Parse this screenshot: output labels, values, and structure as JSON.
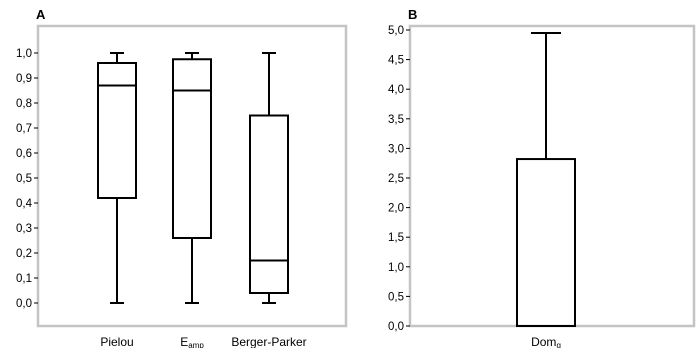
{
  "chart_data": [
    {
      "panel": "A",
      "type": "box",
      "ylim": [
        0,
        1.0
      ],
      "yticks": [
        "0,0",
        "0,1",
        "0,2",
        "0,3",
        "0,4",
        "0,5",
        "0,6",
        "0,7",
        "0,8",
        "0,9",
        "1,0"
      ],
      "grid": false,
      "categories": [
        {
          "label": "Pielou",
          "sub": ""
        },
        {
          "label": "E",
          "sub": "amp"
        },
        {
          "label": "Berger-Parker",
          "sub": ""
        }
      ],
      "boxes": [
        {
          "min": 0.0,
          "q1": 0.42,
          "median": 0.87,
          "q3": 0.96,
          "max": 1.0
        },
        {
          "min": 0.0,
          "q1": 0.26,
          "median": 0.85,
          "q3": 0.975,
          "max": 1.0
        },
        {
          "min": 0.0,
          "q1": 0.04,
          "median": 0.17,
          "q3": 0.75,
          "max": 1.0
        }
      ]
    },
    {
      "panel": "B",
      "type": "bar",
      "ylim": [
        0,
        5.0
      ],
      "yticks": [
        "0,0",
        "0,5",
        "1,0",
        "1,5",
        "2,0",
        "2,5",
        "3,0",
        "3,5",
        "4,0",
        "4,5",
        "5,0"
      ],
      "grid": false,
      "categories": [
        {
          "label": "Dom",
          "sub": "g"
        }
      ],
      "values": [
        2.82
      ],
      "error_upper": [
        4.95
      ]
    }
  ]
}
